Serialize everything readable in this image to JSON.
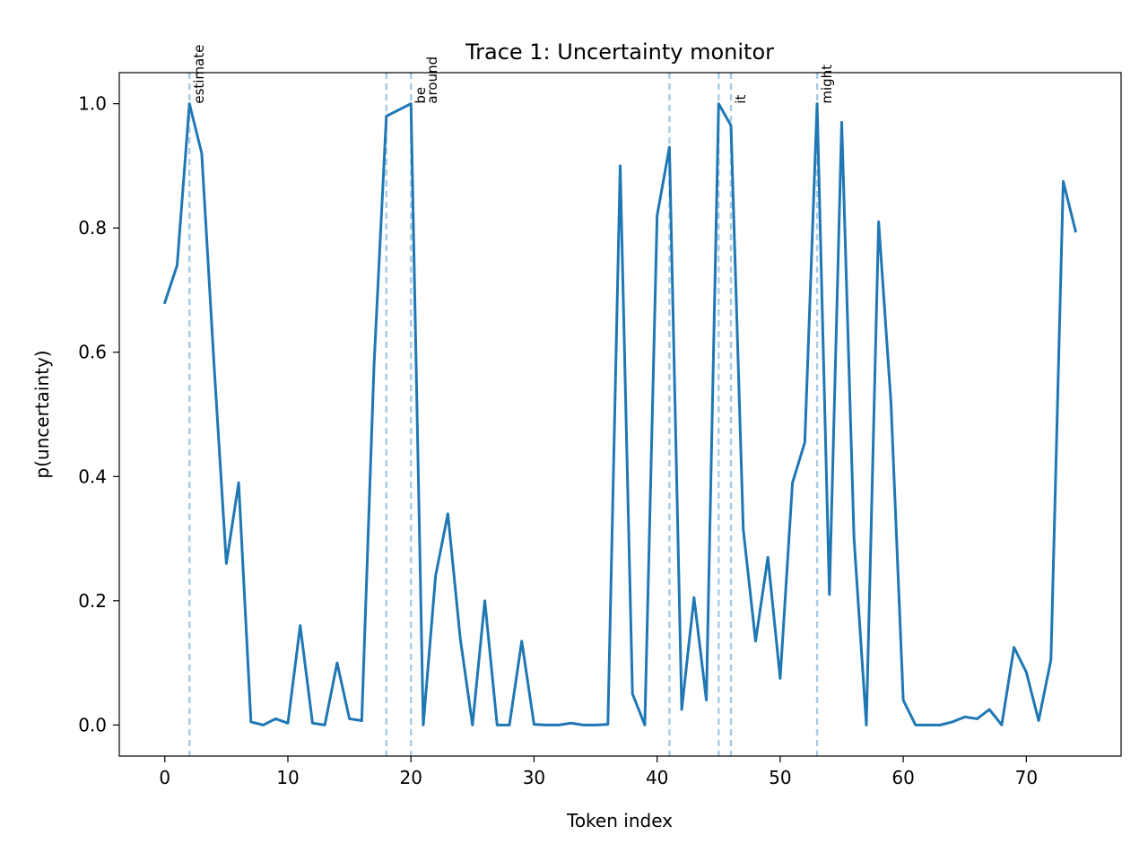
{
  "chart_data": {
    "type": "line",
    "title": "Trace 1: Uncertainty monitor",
    "xlabel": "Token index",
    "ylabel": "p(uncertainty)",
    "xlim": [
      -3.7,
      77.7
    ],
    "ylim": [
      -0.05,
      1.05
    ],
    "xticks": [
      0,
      10,
      20,
      30,
      40,
      50,
      60,
      70
    ],
    "yticks": [
      0.0,
      0.2,
      0.4,
      0.6,
      0.8,
      1.0
    ],
    "ytick_labels": [
      "0.0",
      "0.2",
      "0.4",
      "0.6",
      "0.8",
      "1.0"
    ],
    "grid": false,
    "line_color": "#1f77b4",
    "marker_color": "#a6cbe6",
    "series": [
      {
        "x": [
          0,
          1,
          2,
          3,
          4,
          5,
          6,
          7,
          8,
          9,
          10,
          11,
          12,
          13,
          14,
          15,
          16,
          17,
          18,
          19,
          20,
          21,
          22,
          23,
          24,
          25,
          26,
          27,
          28,
          29,
          30,
          31,
          32,
          33,
          34,
          35,
          36,
          37,
          38,
          39,
          40,
          41,
          42,
          43,
          44,
          45,
          46,
          47,
          48,
          49,
          50,
          51,
          52,
          53,
          54,
          55,
          56,
          57,
          58,
          59,
          60,
          61,
          62,
          63,
          64,
          65,
          66,
          67,
          68,
          69,
          70,
          71,
          72,
          73,
          74
        ],
        "values": [
          0.68,
          0.74,
          1.0,
          0.92,
          0.58,
          0.26,
          0.39,
          0.005,
          0.0,
          0.01,
          0.003,
          0.16,
          0.003,
          0.0,
          0.1,
          0.01,
          0.007,
          0.58,
          0.98,
          0.99,
          1.0,
          0.0,
          0.24,
          0.34,
          0.14,
          0.0,
          0.2,
          0.0,
          0.0,
          0.135,
          0.001,
          0.0,
          0.0,
          0.003,
          0.0,
          0.0,
          0.001,
          0.9,
          0.05,
          0.0,
          0.82,
          0.93,
          0.025,
          0.205,
          0.04,
          1.0,
          0.965,
          0.315,
          0.135,
          0.27,
          0.075,
          0.39,
          0.455,
          1.0,
          0.21,
          0.97,
          0.3,
          0.0,
          0.81,
          0.52,
          0.04,
          0.0,
          0.0,
          0.0,
          0.005,
          0.013,
          0.01,
          0.025,
          0.0,
          0.125,
          0.085,
          0.007,
          0.105,
          0.875,
          0.795
        ]
      }
    ],
    "markers": [
      {
        "x": 2,
        "label": "estimate"
      },
      {
        "x": 18,
        "label": ""
      },
      {
        "x": 20,
        "label": "be"
      },
      {
        "x": 20,
        "label": "around"
      },
      {
        "x": 41,
        "label": ""
      },
      {
        "x": 45,
        "label": ""
      },
      {
        "x": 46,
        "label": "it"
      },
      {
        "x": 53,
        "label": "might"
      }
    ]
  }
}
